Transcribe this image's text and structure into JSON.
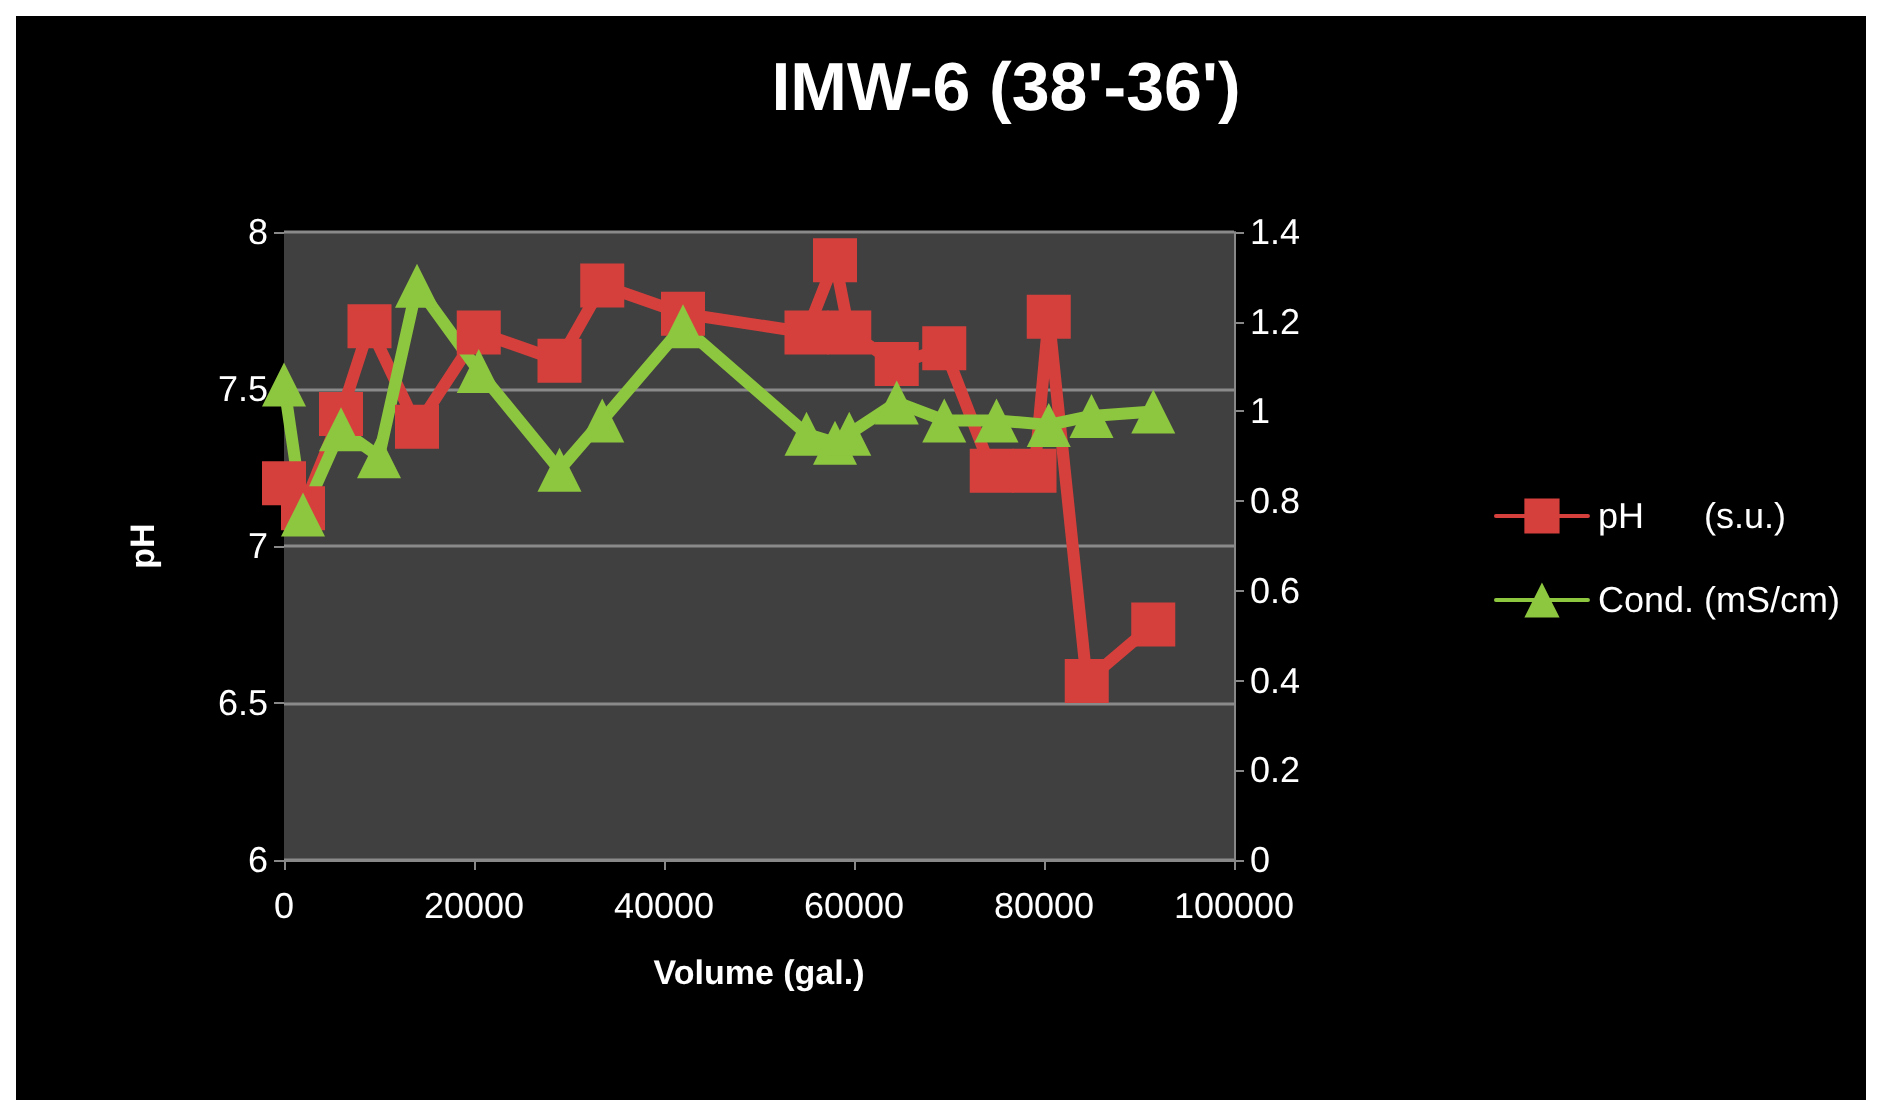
{
  "chart_data": {
    "type": "line",
    "title": "IMW-6 (38'-36')",
    "xlabel": "Volume (gal.)",
    "ylabel": "pH",
    "xlim": [
      0,
      100000
    ],
    "xticks": [
      0,
      20000,
      40000,
      60000,
      80000,
      100000
    ],
    "ylim": [
      6,
      8
    ],
    "yticks": [
      6,
      6.5,
      7,
      7.5,
      8
    ],
    "y2lim": [
      0,
      1.4
    ],
    "y2ticks": [
      0,
      0.2,
      0.4,
      0.6,
      0.8,
      1,
      1.2,
      1.4
    ],
    "grid": "y",
    "legend": "right",
    "line_style": "solid",
    "series": [
      {
        "name": "pH      (s.u.)",
        "color": "#d6403c",
        "marker": "square",
        "x": [
          0,
          2000,
          6000,
          9000,
          14000,
          20500,
          29000,
          33500,
          42000,
          55000,
          58000,
          59500,
          64500,
          69500,
          74500,
          79000,
          80500,
          84500,
          91500
        ],
        "values": [
          7.2,
          7.12,
          7.42,
          7.7,
          7.38,
          7.68,
          7.59,
          7.83,
          7.74,
          7.68,
          7.91,
          7.68,
          7.58,
          7.63,
          7.24,
          7.24,
          7.73,
          6.57,
          6.75
        ]
      },
      {
        "name": "Cond. (mS/cm)",
        "color": "#8dc63f",
        "marker": "triangle",
        "axis": "y2",
        "x": [
          0,
          2000,
          6000,
          10000,
          14000,
          20500,
          29000,
          33500,
          42000,
          55000,
          58000,
          59500,
          64500,
          69500,
          75000,
          80500,
          85000,
          91500
        ],
        "values": [
          1.06,
          0.77,
          0.96,
          0.9,
          1.28,
          1.09,
          0.87,
          0.98,
          1.19,
          0.95,
          0.93,
          0.95,
          1.02,
          0.98,
          0.98,
          0.97,
          0.99,
          1.0
        ]
      }
    ]
  }
}
